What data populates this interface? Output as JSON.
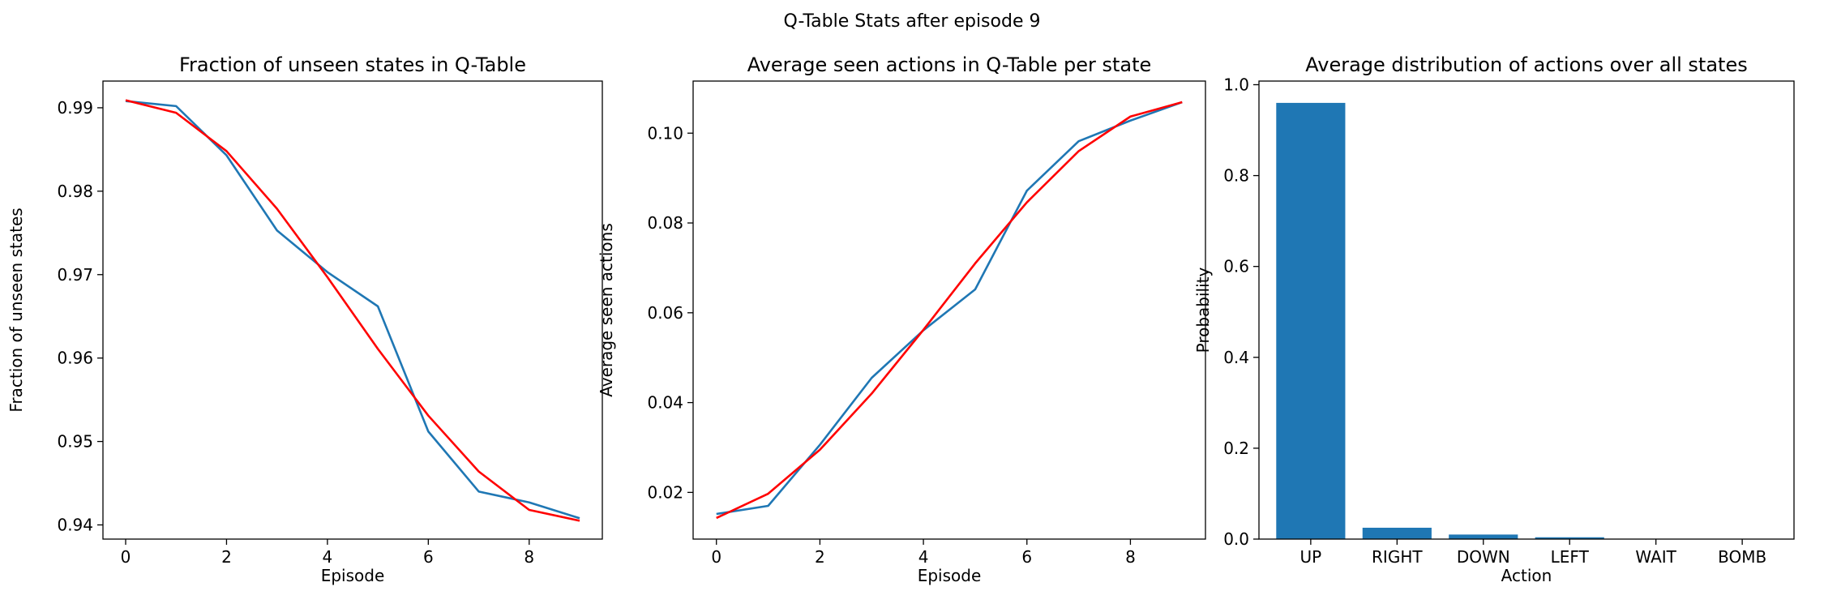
{
  "suptitle": "Q-Table Stats after episode 9",
  "chart_data": [
    {
      "type": "line",
      "title": "Fraction of unseen states in Q-Table",
      "xlabel": "Episode",
      "ylabel": "Fraction of unseen states",
      "xlim": [
        -0.45,
        9.45
      ],
      "ylim": [
        0.9383,
        0.9932
      ],
      "xticks": [
        0,
        2,
        4,
        6,
        8
      ],
      "yticks": [
        0.94,
        0.95,
        0.96,
        0.97,
        0.98,
        0.99
      ],
      "x": [
        0,
        1,
        2,
        3,
        4,
        5,
        6,
        7,
        8,
        9
      ],
      "series": [
        {
          "color": "#1f77b4",
          "values": [
            0.9908,
            0.9902,
            0.9843,
            0.9753,
            0.9703,
            0.9662,
            0.9512,
            0.944,
            0.9427,
            0.9408
          ]
        },
        {
          "color": "#ff0000",
          "values": [
            0.9909,
            0.9894,
            0.9848,
            0.9779,
            0.9697,
            0.9611,
            0.9531,
            0.9464,
            0.9418,
            0.9405
          ]
        }
      ]
    },
    {
      "type": "line",
      "title": "Average seen actions in Q-Table per state",
      "xlabel": "Episode",
      "ylabel": "Average seen actions",
      "xlim": [
        -0.45,
        9.45
      ],
      "ylim": [
        0.0096,
        0.1116
      ],
      "xticks": [
        0,
        2,
        4,
        6,
        8
      ],
      "yticks": [
        0.02,
        0.04,
        0.06,
        0.08,
        0.1
      ],
      "yticklabels": [
        "0.02",
        "0.04",
        "0.06",
        "0.08",
        "0.10"
      ],
      "x": [
        0,
        1,
        2,
        3,
        4,
        5,
        6,
        7,
        8,
        9
      ],
      "series": [
        {
          "color": "#1f77b4",
          "values": [
            0.0152,
            0.017,
            0.0306,
            0.0455,
            0.0561,
            0.0652,
            0.0872,
            0.0982,
            0.1028,
            0.1069
          ]
        },
        {
          "color": "#ff0000",
          "values": [
            0.0143,
            0.0197,
            0.0295,
            0.042,
            0.0562,
            0.071,
            0.0846,
            0.096,
            0.1037,
            0.1069
          ]
        }
      ]
    },
    {
      "type": "bar",
      "title": "Average distribution of actions over all states",
      "xlabel": "Action",
      "ylabel": "Probability",
      "ylim": [
        0,
        1.008
      ],
      "yticks": [
        0.0,
        0.2,
        0.4,
        0.6,
        0.8,
        1.0
      ],
      "yticklabels": [
        "0.0",
        "0.2",
        "0.4",
        "0.6",
        "0.8",
        "1.0"
      ],
      "categories": [
        "UP",
        "RIGHT",
        "DOWN",
        "LEFT",
        "WAIT",
        "BOMB"
      ],
      "values": [
        0.96,
        0.025,
        0.01,
        0.004,
        0.0005,
        0.0003
      ],
      "color": "#1f77b4"
    }
  ]
}
